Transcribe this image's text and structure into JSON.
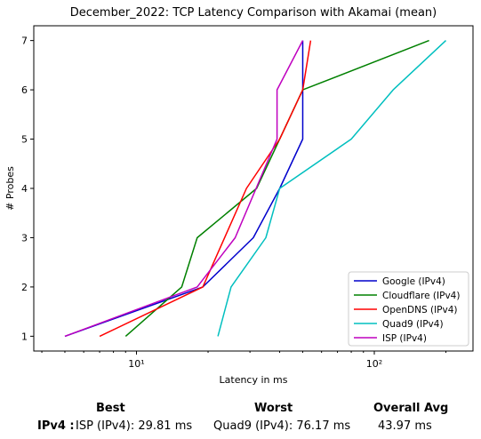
{
  "chart_data": {
    "type": "line",
    "title": "December_2022: TCP Latency Comparison with Akamai (mean)",
    "xlabel": "Latency in ms",
    "ylabel": "# Probes",
    "xscale": "log",
    "xlim": [
      3.7,
      260
    ],
    "ylim": [
      0.7,
      7.3
    ],
    "x_tick_labels": [
      "10¹",
      "10²"
    ],
    "x_major_ticks": [
      10,
      100
    ],
    "y_ticks": [
      1,
      2,
      3,
      4,
      5,
      6,
      7
    ],
    "grid": false,
    "legend_position": "lower-right",
    "series": [
      {
        "name": "Google (IPv4)",
        "color": "#0000cc",
        "x": [
          5,
          19,
          31,
          40,
          50,
          50
        ],
        "y": [
          1,
          2,
          3,
          4,
          5,
          7
        ]
      },
      {
        "name": "Cloudflare (IPv4)",
        "color": "#008000",
        "x": [
          9,
          15.5,
          18,
          32,
          50,
          170
        ],
        "y": [
          1,
          2,
          3,
          4,
          6,
          7
        ]
      },
      {
        "name": "OpenDNS (IPv4)",
        "color": "#ff0000",
        "x": [
          7,
          19,
          29,
          40,
          50,
          54
        ],
        "y": [
          1,
          2,
          4,
          5,
          6,
          7
        ]
      },
      {
        "name": "Quad9 (IPv4)",
        "color": "#00bfbf",
        "x": [
          22,
          25,
          35,
          40,
          80,
          120,
          200
        ],
        "y": [
          1,
          2,
          3,
          4,
          5,
          6,
          7
        ]
      },
      {
        "name": "ISP (IPv4)",
        "color": "#bf00bf",
        "x": [
          5,
          18,
          26,
          39,
          39,
          50
        ],
        "y": [
          1,
          2,
          3,
          5,
          6,
          7
        ]
      }
    ]
  },
  "summary": {
    "best_header": "Best",
    "worst_header": "Worst",
    "avg_header": "Overall Avg",
    "row_label": "IPv4 :",
    "best": "ISP (IPv4): 29.81 ms",
    "worst": "Quad9 (IPv4): 76.17 ms",
    "avg": "43.97 ms"
  }
}
